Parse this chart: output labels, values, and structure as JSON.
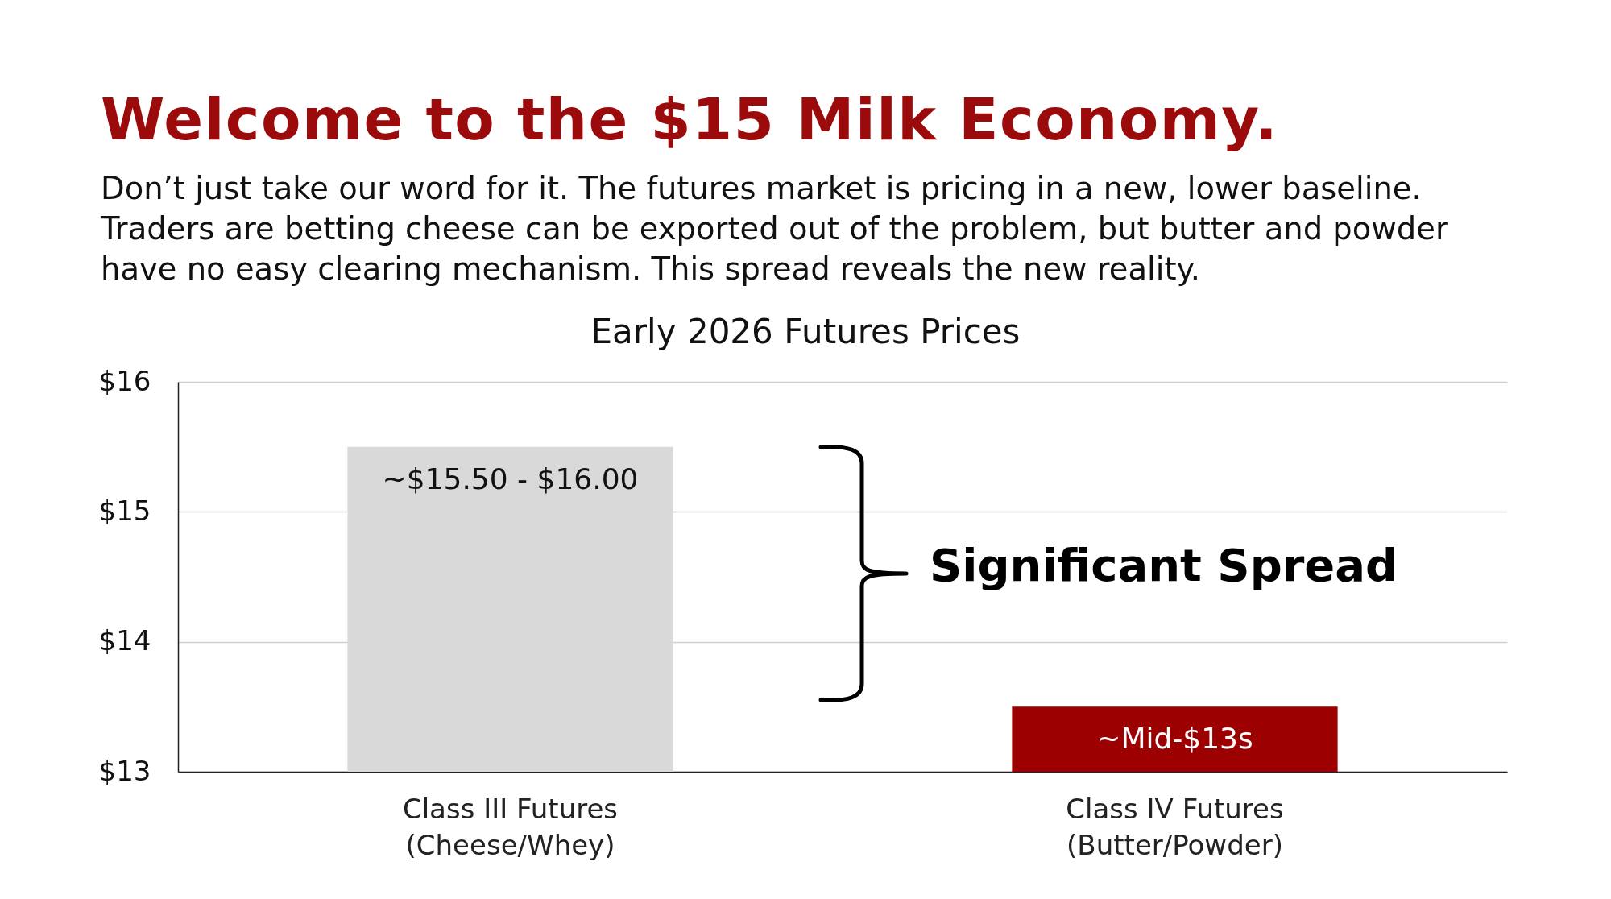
{
  "chart_data": {
    "type": "bar",
    "title": "Welcome to the $15 Milk Economy.",
    "subtitle": "Don’t just take our word for it. The futures market is pricing in a new, lower baseline.\nTraders are betting cheese can be exported out of the problem, but butter and powder\nhave no easy clearing mechanism. This spread reveals the new reality.",
    "annotations": [
      "Early 2026 Futures Prices",
      "Significant Spread"
    ],
    "categories": [
      "Class III Futures\n(Cheese/Whey)",
      "Class IV Futures\n(Butter/Powder)"
    ],
    "values": [
      15.5,
      13.5
    ],
    "colors": [
      "#d9d9d9",
      "#9c0000"
    ],
    "value_labels": [
      "~$15.50 - $16.00",
      "~Mid-$13s"
    ],
    "ylim": [
      13,
      16
    ],
    "yticks": [
      {
        "value": 13,
        "label": "$13"
      },
      {
        "value": 14,
        "label": "$14"
      },
      {
        "value": 15,
        "label": "$15"
      },
      {
        "value": 16,
        "label": "$16"
      }
    ],
    "grid": "y"
  }
}
